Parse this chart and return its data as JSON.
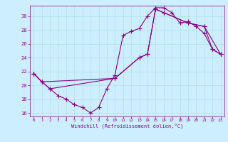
{
  "xlabel": "Windchill (Refroidissement éolien,°C)",
  "background_color": "#cceeff",
  "line_color": "#880088",
  "ylim": [
    15.5,
    31.5
  ],
  "xlim": [
    -0.5,
    23.5
  ],
  "yticks": [
    16,
    18,
    20,
    22,
    24,
    26,
    28,
    30
  ],
  "xticks": [
    0,
    1,
    2,
    3,
    4,
    5,
    6,
    7,
    8,
    9,
    10,
    11,
    12,
    13,
    14,
    15,
    16,
    17,
    18,
    19,
    20,
    21,
    22,
    23
  ],
  "line1_x": [
    0,
    1,
    2,
    3,
    4,
    5,
    6,
    7,
    8,
    9,
    10,
    11,
    12,
    13,
    14,
    15,
    16,
    17,
    18,
    19,
    20,
    21,
    22,
    23
  ],
  "line1_y": [
    21.7,
    20.5,
    19.5,
    18.5,
    18.0,
    17.2,
    16.8,
    16.0,
    16.8,
    19.5,
    21.5,
    27.2,
    27.8,
    28.2,
    30.0,
    31.2,
    31.2,
    30.5,
    29.0,
    29.2,
    28.5,
    27.5,
    25.2,
    24.5
  ],
  "line2_x": [
    0,
    1,
    10,
    13,
    14,
    15,
    16,
    19,
    21,
    23
  ],
  "line2_y": [
    21.7,
    20.5,
    21.0,
    24.0,
    24.5,
    31.0,
    30.5,
    29.0,
    28.5,
    24.5
  ],
  "line3_x": [
    0,
    1,
    2,
    10,
    13,
    14,
    15,
    16,
    19,
    21,
    22,
    23
  ],
  "line3_y": [
    21.7,
    20.5,
    19.5,
    21.0,
    24.0,
    24.5,
    31.0,
    30.5,
    29.0,
    28.5,
    25.2,
    24.5
  ]
}
